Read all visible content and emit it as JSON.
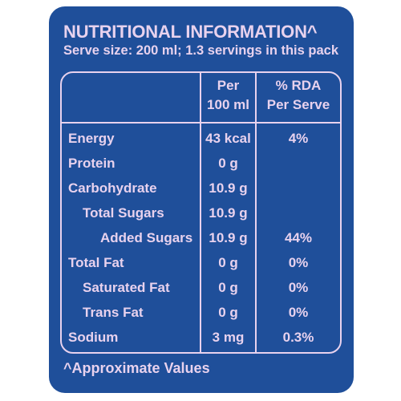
{
  "title": "NUTRITIONAL INFORMATION^",
  "serve_size": "Serve size: 200 ml; 1.3 servings in this pack",
  "table": {
    "headers": {
      "per_line1": "Per",
      "per_line2": "100 ml",
      "rda_line1": "% RDA",
      "rda_line2": "Per Serve"
    },
    "rows": [
      {
        "name": "Energy",
        "value": "43 kcal",
        "rda": "4%"
      },
      {
        "name": "Protein",
        "value": "0 g",
        "rda": ""
      },
      {
        "name": "Carbohydrate",
        "value": "10.9 g",
        "rda": ""
      },
      {
        "name": "Total Sugars",
        "value": "10.9 g",
        "rda": ""
      },
      {
        "name": "Added Sugars",
        "value": "10.9 g",
        "rda": "44%"
      },
      {
        "name": "Total Fat",
        "value": "0 g",
        "rda": "0%"
      },
      {
        "name": "Saturated Fat",
        "value": "0 g",
        "rda": "0%"
      },
      {
        "name": "Trans Fat",
        "value": "0 g",
        "rda": "0%"
      },
      {
        "name": "Sodium",
        "value": "3 mg",
        "rda": "0.3%"
      }
    ]
  },
  "footnote": "^Approximate Values",
  "colors": {
    "background": "#1f4f9a",
    "text": "#e8d2ee"
  }
}
